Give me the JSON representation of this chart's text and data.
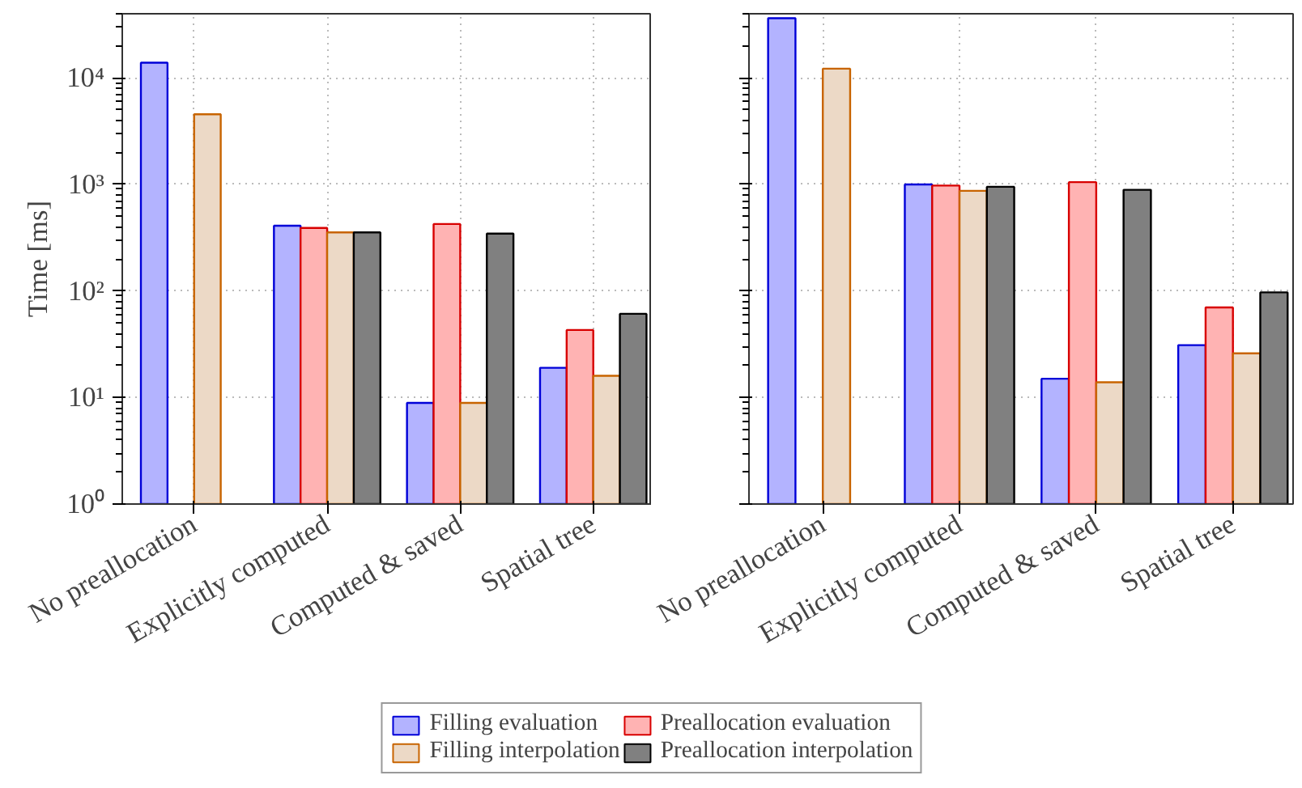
{
  "chart_data": [
    {
      "type": "bar",
      "ylabel": "Time [ms]",
      "log": true,
      "grid": true,
      "legend": "bottom",
      "tick_labels": "xy",
      "categories": [
        "No preallocation",
        "Explicitly computed",
        "Computed & saved",
        "Spatial tree"
      ],
      "ylim": [
        1,
        40000
      ],
      "yticks": [
        {
          "value": 1,
          "label": "10⁰"
        },
        {
          "value": 10,
          "label": "10¹"
        },
        {
          "value": 100,
          "label": "10²"
        },
        {
          "value": 1000,
          "label": "10³"
        },
        {
          "value": 10000,
          "label": "10⁴"
        }
      ],
      "series": [
        {
          "name": "Filling evaluation",
          "color": "#b3b3ff",
          "values": [
            13900,
            410,
            8.9,
            19
          ]
        },
        {
          "name": "Preallocation evaluation",
          "color": "#ffb3b3",
          "values": [
            null,
            390,
            425,
            43
          ]
        },
        {
          "name": "Filling interpolation",
          "color": "#ecd9c6",
          "values": [
            4550,
            355,
            8.9,
            16
          ]
        },
        {
          "name": "Preallocation interpolation",
          "color": "#808080",
          "values": [
            null,
            355,
            345,
            61
          ]
        }
      ]
    },
    {
      "type": "bar",
      "log": true,
      "grid": true,
      "tick_labels": "x",
      "categories": [
        "No preallocation",
        "Explicitly computed",
        "Computed & saved",
        "Spatial tree"
      ],
      "ylim": [
        1,
        40000
      ],
      "yticks": [
        {
          "value": 1,
          "label": null
        },
        {
          "value": 10,
          "label": null
        },
        {
          "value": 100,
          "label": null
        },
        {
          "value": 1000,
          "label": null
        },
        {
          "value": 10000,
          "label": null
        }
      ],
      "series": [
        {
          "color": "#b3b3ff",
          "values": [
            36300,
            1000,
            15,
            31
          ]
        },
        {
          "color": "#ffb3b3",
          "values": [
            null,
            975,
            1050,
            70
          ]
        },
        {
          "color": "#ecd9c6",
          "values": [
            12200,
            870,
            13.9,
            26
          ]
        },
        {
          "color": "#808080",
          "values": [
            null,
            950,
            890,
            97
          ]
        }
      ]
    }
  ]
}
